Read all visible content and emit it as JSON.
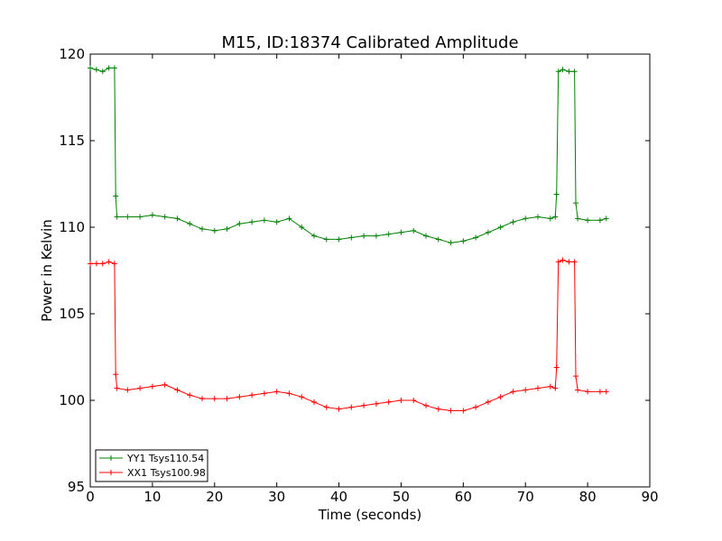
{
  "chart_data": {
    "type": "line",
    "title": "M15, ID:18374 Calibrated Amplitude",
    "xlabel": "Time (seconds)",
    "ylabel": "Power in Kelvin",
    "xlim": [
      0,
      90
    ],
    "ylim": [
      95,
      120
    ],
    "xticks": [
      0,
      10,
      20,
      30,
      40,
      50,
      60,
      70,
      80,
      90
    ],
    "yticks": [
      95,
      100,
      105,
      110,
      115,
      120
    ],
    "grid": false,
    "legend_position": "lower-left",
    "marker": "+",
    "series": [
      {
        "name": "YY1 Tsys110.54",
        "color": "#008000",
        "x": [
          0,
          1,
          2,
          3,
          3.9,
          4.1,
          4.3,
          6,
          8,
          10,
          12,
          14,
          16,
          18,
          20,
          22,
          24,
          26,
          28,
          30,
          32,
          34,
          36,
          38,
          40,
          42,
          44,
          46,
          48,
          50,
          52,
          54,
          56,
          58,
          60,
          62,
          64,
          66,
          68,
          70,
          72,
          74,
          74.8,
          75.0,
          75.3,
          76,
          77,
          77.9,
          78.1,
          78.4,
          80,
          82,
          83
        ],
        "values": [
          119.2,
          119.1,
          119.0,
          119.2,
          119.2,
          111.8,
          110.6,
          110.6,
          110.6,
          110.7,
          110.6,
          110.5,
          110.2,
          109.9,
          109.8,
          109.9,
          110.2,
          110.3,
          110.4,
          110.3,
          110.5,
          110.0,
          109.5,
          109.3,
          109.3,
          109.4,
          109.5,
          109.5,
          109.6,
          109.7,
          109.8,
          109.5,
          109.3,
          109.1,
          109.2,
          109.4,
          109.7,
          110.0,
          110.3,
          110.5,
          110.6,
          110.5,
          110.6,
          111.9,
          119.0,
          119.1,
          119.0,
          119.0,
          111.4,
          110.5,
          110.4,
          110.4,
          110.5
        ]
      },
      {
        "name": "XX1 Tsys100.98",
        "color": "#ff0000",
        "x": [
          0,
          1,
          2,
          3,
          3.9,
          4.1,
          4.3,
          6,
          8,
          10,
          12,
          14,
          16,
          18,
          20,
          22,
          24,
          26,
          28,
          30,
          32,
          34,
          36,
          38,
          40,
          42,
          44,
          46,
          48,
          50,
          52,
          54,
          56,
          58,
          60,
          62,
          64,
          66,
          68,
          70,
          72,
          74,
          74.8,
          75.0,
          75.3,
          76,
          77,
          77.9,
          78.1,
          78.4,
          80,
          82,
          83
        ],
        "values": [
          107.9,
          107.9,
          107.9,
          108.0,
          107.9,
          101.5,
          100.7,
          100.6,
          100.7,
          100.8,
          100.9,
          100.6,
          100.3,
          100.1,
          100.1,
          100.1,
          100.2,
          100.3,
          100.4,
          100.5,
          100.4,
          100.2,
          99.9,
          99.6,
          99.5,
          99.6,
          99.7,
          99.8,
          99.9,
          100.0,
          100.0,
          99.7,
          99.5,
          99.4,
          99.4,
          99.6,
          99.9,
          100.2,
          100.5,
          100.6,
          100.7,
          100.8,
          100.7,
          101.9,
          108.0,
          108.1,
          108.0,
          108.0,
          101.4,
          100.6,
          100.5,
          100.5,
          100.5
        ]
      }
    ]
  }
}
